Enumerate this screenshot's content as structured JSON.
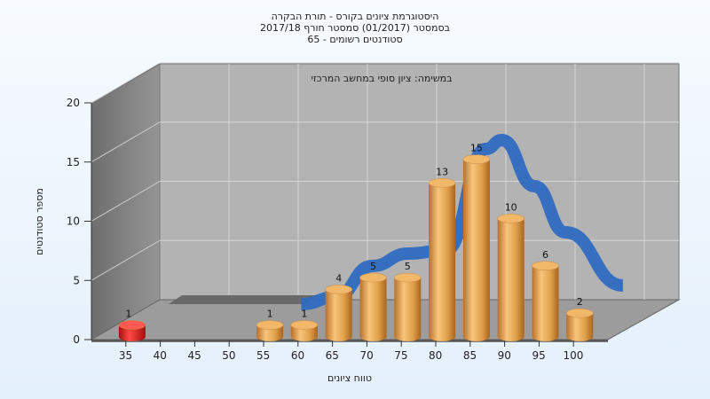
{
  "chart_data": {
    "type": "bar",
    "title": "היסטוגרמת ציונים בקורס - תורת הבקרה",
    "subtitle_line2": "בסמסטר (01/2017) סמסטר חורף 2017/18",
    "subtitle_line3": "סטודנטים רשומים - 65",
    "annotation": "במשימה: ציון סופי במחשב המרכזי",
    "xlabel": "טווח ציונים",
    "ylabel": "מספר סטודנטים",
    "ylim": [
      0,
      20
    ],
    "yticks": [
      0,
      5,
      10,
      15,
      20
    ],
    "categories": [
      "35",
      "40",
      "45",
      "50",
      "55",
      "60",
      "65",
      "70",
      "75",
      "80",
      "85",
      "90",
      "95",
      "100"
    ],
    "values": [
      1,
      0,
      0,
      0,
      1,
      1,
      4,
      5,
      5,
      13,
      15,
      10,
      6,
      2
    ],
    "bar_colors": {
      "highlight": "#e0201c",
      "normal": "#e8a850"
    },
    "curve_color": "#2f6cc0",
    "grid": true
  }
}
